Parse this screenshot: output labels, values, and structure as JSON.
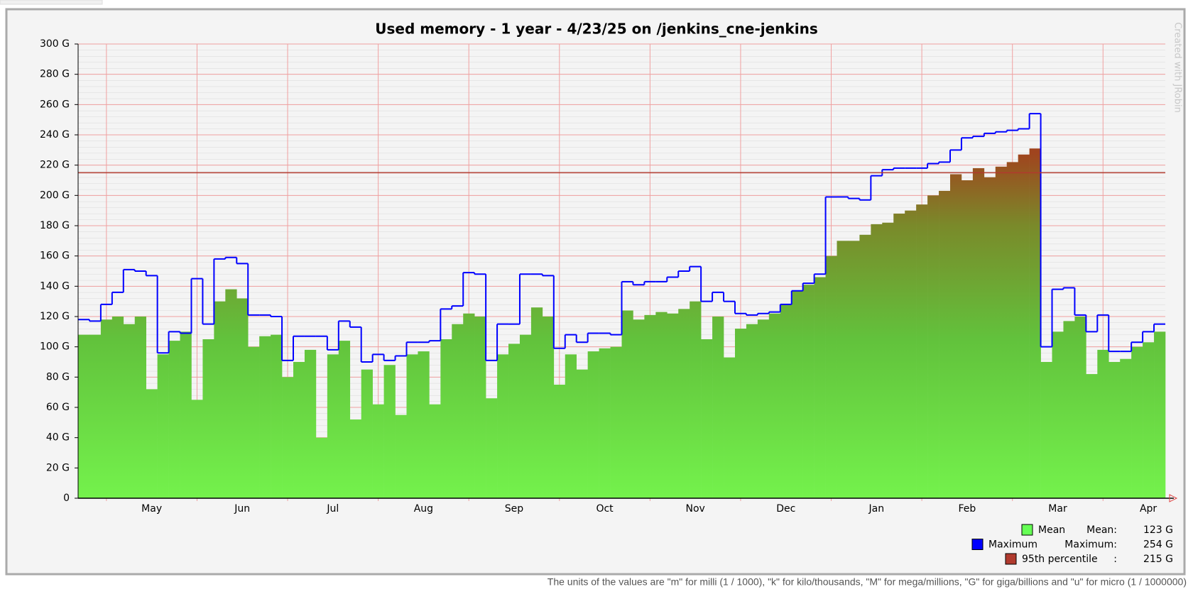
{
  "chart_data": {
    "type": "bar",
    "title": "Used memory - 1 year - 4/23/25 on /jenkins_cne-jenkins",
    "watermark": "Created with JRobin",
    "note": "The units of the values are \"m\" for milli (1 / 1000), \"k\" for kilo/thousands, \"M\" for mega/millions, \"G\" for giga/billions and \"u\" for micro (1 / 1000000)",
    "categories": [
      null,
      null,
      null,
      null,
      null,
      null,
      "May",
      null,
      null,
      null,
      null,
      null,
      null,
      null,
      "Jun",
      null,
      null,
      null,
      null,
      null,
      null,
      null,
      "Jul",
      null,
      null,
      null,
      null,
      null,
      null,
      null,
      "Aug",
      null,
      null,
      null,
      null,
      null,
      null,
      null,
      "Sep",
      null,
      null,
      null,
      null,
      null,
      null,
      null,
      "Oct",
      null,
      null,
      null,
      null,
      null,
      null,
      null,
      "Nov",
      null,
      null,
      null,
      null,
      null,
      null,
      null,
      "Dec",
      null,
      null,
      null,
      null,
      null,
      null,
      null,
      "Jan",
      null,
      null,
      null,
      null,
      null,
      null,
      null,
      "Feb",
      null,
      null,
      null,
      null,
      null,
      null,
      null,
      "Mar",
      null,
      null,
      null,
      null,
      null,
      null,
      null,
      "Apr",
      null
    ],
    "series": [
      {
        "name": "Mean",
        "color": "#66ff55",
        "values": [
          108,
          108,
          118,
          120,
          115,
          120,
          72,
          95,
          104,
          110,
          65,
          105,
          130,
          138,
          132,
          100,
          107,
          108,
          80,
          90,
          98,
          40,
          95,
          104,
          52,
          85,
          62,
          88,
          55,
          95,
          97,
          62,
          105,
          115,
          122,
          120,
          66,
          95,
          102,
          108,
          126,
          120,
          75,
          95,
          85,
          97,
          99,
          100,
          124,
          118,
          121,
          123,
          122,
          125,
          130,
          105,
          120,
          93,
          112,
          115,
          118,
          122,
          128,
          137,
          141,
          146,
          160,
          170,
          170,
          174,
          181,
          182,
          188,
          190,
          194,
          200,
          203,
          214,
          210,
          218,
          212,
          219,
          222,
          227,
          231,
          90,
          110,
          117,
          120,
          82,
          98,
          90,
          92,
          100,
          103,
          110
        ]
      },
      {
        "name": "Maximum",
        "color": "#0000ff",
        "values": [
          118,
          117,
          128,
          136,
          151,
          150,
          147,
          96,
          110,
          109,
          145,
          115,
          158,
          159,
          155,
          121,
          121,
          120,
          91,
          107,
          107,
          107,
          98,
          117,
          113,
          90,
          95,
          91,
          94,
          103,
          103,
          104,
          125,
          127,
          149,
          148,
          91,
          115,
          115,
          148,
          148,
          147,
          99,
          108,
          103,
          109,
          109,
          108,
          143,
          141,
          143,
          143,
          146,
          150,
          153,
          130,
          136,
          130,
          122,
          121,
          122,
          123,
          128,
          137,
          142,
          148,
          199,
          199,
          198,
          197,
          213,
          217,
          218,
          218,
          218,
          221,
          222,
          230,
          238,
          239,
          241,
          242,
          243,
          244,
          254,
          100,
          138,
          139,
          121,
          110,
          121,
          97,
          97,
          103,
          110,
          115
        ]
      }
    ],
    "percentile": {
      "name": "95th percentile",
      "color": "#b03a2e"
    },
    "stats": [
      {
        "label": "Mean:",
        "value": {
          "value": 123,
          "label": "123 G"
        }
      },
      {
        "label": "Maximum:",
        "value": {
          "value": 254,
          "label": "254 G"
        }
      },
      {
        "label": ":",
        "value": {
          "value": 215,
          "label": "215 G"
        }
      }
    ],
    "ylim": [
      0,
      300
    ],
    "yticks": [
      0,
      {
        "value": 20,
        "label": "20 G"
      },
      {
        "value": 40,
        "label": "40 G"
      },
      {
        "value": 60,
        "label": "60 G"
      },
      {
        "value": 80,
        "label": "80 G"
      },
      {
        "value": 100,
        "label": "100 G"
      },
      {
        "value": 120,
        "label": "120 G"
      },
      {
        "value": 140,
        "label": "140 G"
      },
      {
        "value": 160,
        "label": "160 G"
      },
      {
        "value": 180,
        "label": "180 G"
      },
      {
        "value": 200,
        "label": "200 G"
      },
      {
        "value": 220,
        "label": "220 G"
      },
      {
        "value": 240,
        "label": "240 G"
      },
      {
        "value": 260,
        "label": "260 G"
      },
      {
        "value": 280,
        "label": "280 G"
      },
      {
        "value": {
          "value": 300,
          "label": "300 G"
        }
      }
    ],
    "grid": true
  }
}
